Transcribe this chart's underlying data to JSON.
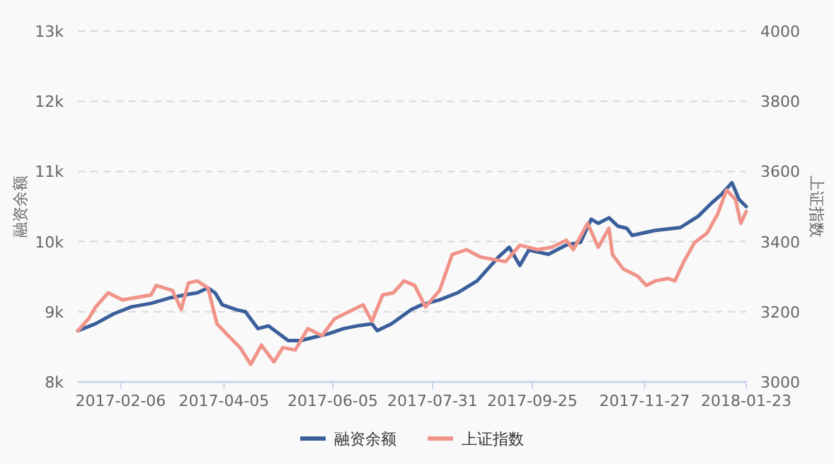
{
  "chart_data": {
    "type": "line",
    "ylabel": "融资余额",
    "y2label": "上证指数",
    "xlim": [
      "2017-01-13",
      "2018-01-23"
    ],
    "xticks": [
      "2017-02-06",
      "2017-04-05",
      "2017-06-05",
      "2017-07-31",
      "2017-09-25",
      "2017-11-27",
      "2018-01-23"
    ],
    "ylim": [
      8000,
      13000
    ],
    "yticks": [
      {
        "value": 8000,
        "label": "8k"
      },
      {
        "value": 9000,
        "label": "9k"
      },
      {
        "value": 10000,
        "label": "10k"
      },
      {
        "value": 11000,
        "label": "11k"
      },
      {
        "value": 12000,
        "label": "12k"
      },
      {
        "value": 13000,
        "label": "13k"
      }
    ],
    "y2lim": [
      3000,
      4000
    ],
    "y2ticks": [
      3000,
      3200,
      3400,
      3600,
      3800,
      4000
    ],
    "grid": "y",
    "legend": "bottom",
    "series": [
      {
        "name": "融资余额",
        "color": "#3a5f9a",
        "x": [
          "2017-01-13",
          "2017-01-23",
          "2017-02-02",
          "2017-02-12",
          "2017-02-23",
          "2017-03-06",
          "2017-03-16",
          "2017-03-21",
          "2017-03-27",
          "2017-03-31",
          "2017-04-04",
          "2017-04-12",
          "2017-04-17",
          "2017-04-24",
          "2017-04-30",
          "2017-05-11",
          "2017-05-18",
          "2017-05-26",
          "2017-06-03",
          "2017-06-11",
          "2017-06-19",
          "2017-06-27",
          "2017-06-30",
          "2017-07-08",
          "2017-07-19",
          "2017-07-25",
          "2017-08-04",
          "2017-08-14",
          "2017-08-25",
          "2017-09-06",
          "2017-09-12",
          "2017-09-18",
          "2017-09-23",
          "2017-10-04",
          "2017-10-14",
          "2017-10-22",
          "2017-10-28",
          "2017-11-01",
          "2017-11-07",
          "2017-11-12",
          "2017-11-17",
          "2017-11-20",
          "2017-12-03",
          "2017-12-17",
          "2017-12-27",
          "2018-01-04",
          "2018-01-09",
          "2018-01-15",
          "2018-01-19",
          "2018-01-23"
        ],
        "values": [
          8730,
          8830,
          8970,
          9070,
          9120,
          9200,
          9250,
          9270,
          9340,
          9270,
          9100,
          9030,
          9000,
          8760,
          8800,
          8590,
          8590,
          8640,
          8690,
          8760,
          8800,
          8830,
          8730,
          8830,
          9030,
          9100,
          9170,
          9270,
          9440,
          9780,
          9920,
          9660,
          9880,
          9820,
          9950,
          9990,
          10320,
          10260,
          10340,
          10220,
          10190,
          10090,
          10160,
          10200,
          10360,
          10560,
          10670,
          10840,
          10600,
          10500
        ]
      },
      {
        "name": "上证指数",
        "color": "#f0948a",
        "axis": "y2",
        "x": [
          "2017-01-13",
          "2017-01-19",
          "2017-01-23",
          "2017-01-30",
          "2017-02-07",
          "2017-02-15",
          "2017-02-23",
          "2017-02-26",
          "2017-03-07",
          "2017-03-12",
          "2017-03-16",
          "2017-03-21",
          "2017-03-27",
          "2017-04-01",
          "2017-04-06",
          "2017-04-14",
          "2017-04-20",
          "2017-04-26",
          "2017-05-03",
          "2017-05-08",
          "2017-05-15",
          "2017-05-22",
          "2017-05-30",
          "2017-06-06",
          "2017-06-14",
          "2017-06-22",
          "2017-06-27",
          "2017-07-03",
          "2017-07-09",
          "2017-07-15",
          "2017-07-21",
          "2017-07-27",
          "2017-08-04",
          "2017-08-11",
          "2017-08-19",
          "2017-08-27",
          "2017-09-10",
          "2017-09-18",
          "2017-09-28",
          "2017-10-06",
          "2017-10-14",
          "2017-10-18",
          "2017-10-26",
          "2017-11-01",
          "2017-11-07",
          "2017-11-09",
          "2017-11-15",
          "2017-11-23",
          "2017-11-28",
          "2017-12-03",
          "2017-12-10",
          "2017-12-14",
          "2017-12-19",
          "2017-12-25",
          "2018-01-01",
          "2018-01-07",
          "2018-01-12",
          "2018-01-17",
          "2018-01-20",
          "2018-01-23"
        ],
        "values": [
          3146,
          3180,
          3214,
          3254,
          3234,
          3241,
          3248,
          3275,
          3261,
          3207,
          3282,
          3288,
          3268,
          3166,
          3139,
          3098,
          3050,
          3105,
          3057,
          3098,
          3091,
          3152,
          3132,
          3180,
          3200,
          3220,
          3173,
          3248,
          3254,
          3288,
          3275,
          3214,
          3261,
          3363,
          3377,
          3356,
          3343,
          3390,
          3377,
          3384,
          3404,
          3377,
          3452,
          3384,
          3438,
          3363,
          3322,
          3302,
          3275,
          3288,
          3295,
          3288,
          3343,
          3397,
          3424,
          3479,
          3547,
          3520,
          3452,
          3486
        ]
      }
    ]
  }
}
